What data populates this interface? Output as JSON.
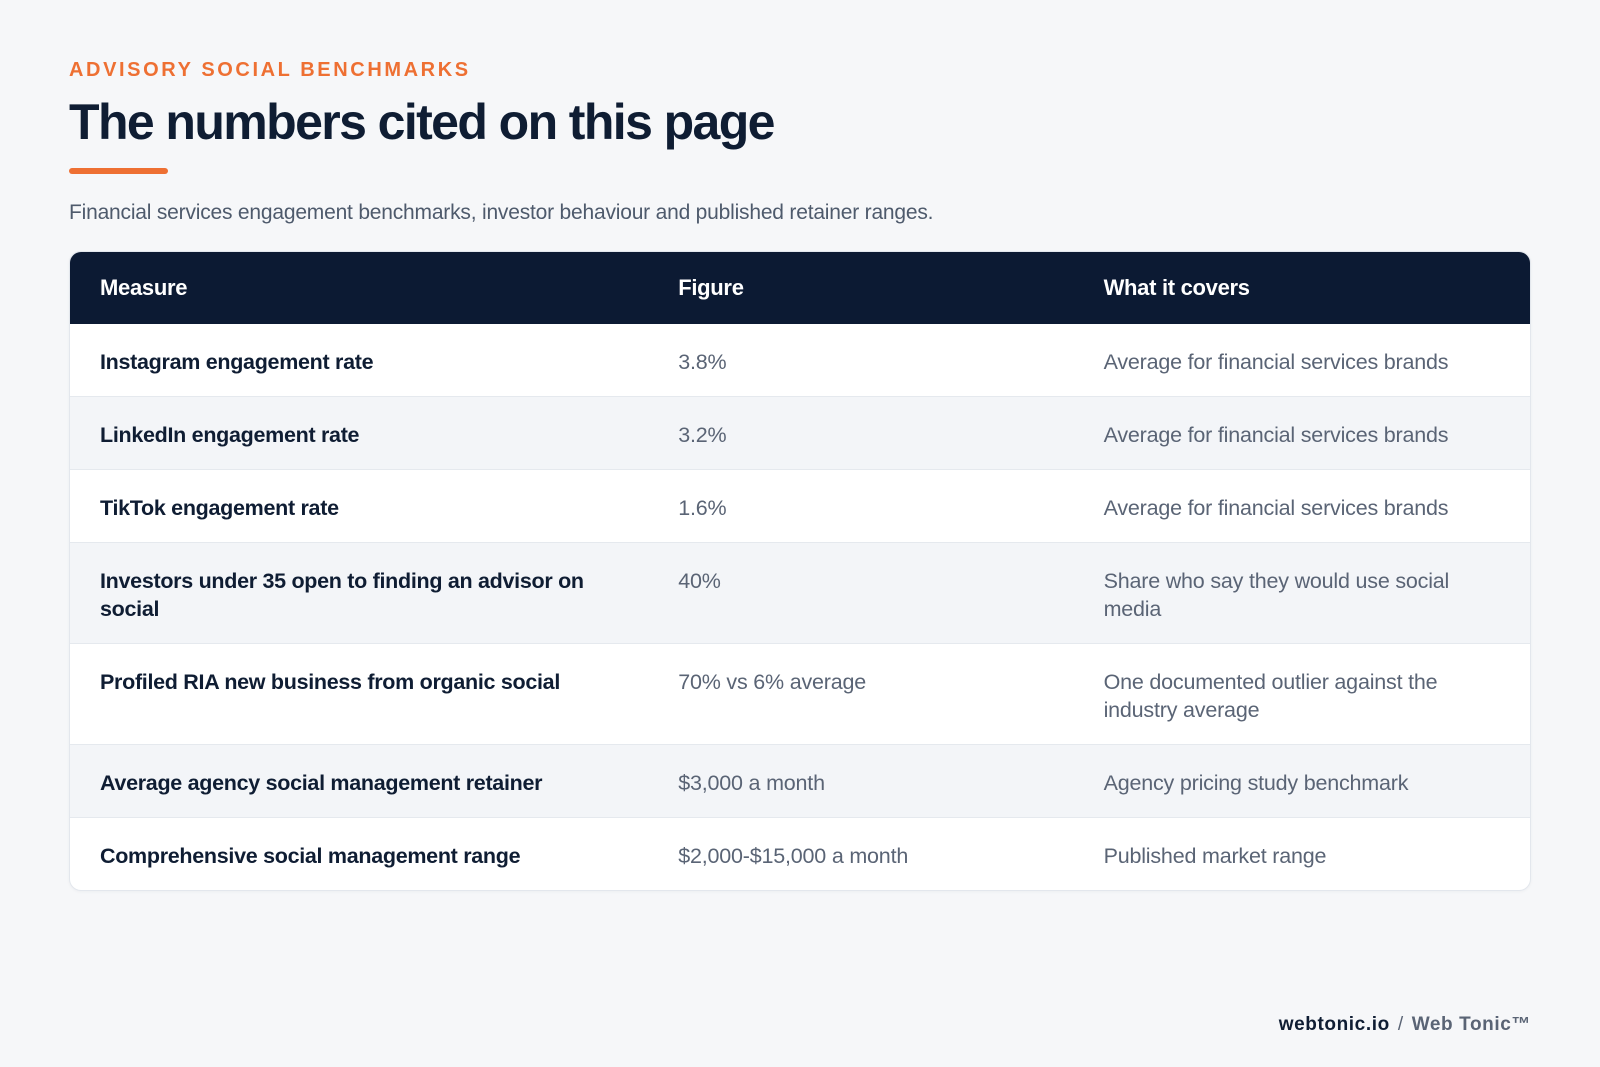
{
  "header": {
    "eyebrow": "ADVISORY SOCIAL BENCHMARKS",
    "title": "The numbers cited on this page",
    "subtitle": "Financial services engagement benchmarks, investor behaviour and published retainer ranges."
  },
  "table": {
    "columns": [
      "Measure",
      "Figure",
      "What it covers"
    ],
    "rows": [
      {
        "measure": "Instagram engagement rate",
        "figure": "3.8%",
        "covers": "Average for financial services brands"
      },
      {
        "measure": "LinkedIn engagement rate",
        "figure": "3.2%",
        "covers": "Average for financial services brands"
      },
      {
        "measure": "TikTok engagement rate",
        "figure": "1.6%",
        "covers": "Average for financial services brands"
      },
      {
        "measure": "Investors under 35 open to finding an advisor on social",
        "figure": "40%",
        "covers": "Share who say they would use social media"
      },
      {
        "measure": "Profiled RIA new business from organic social",
        "figure": "70% vs 6% average",
        "covers": "One documented outlier against the industry average"
      },
      {
        "measure": "Average agency social management retainer",
        "figure": "$3,000 a month",
        "covers": "Agency pricing study benchmark"
      },
      {
        "measure": "Comprehensive social management range",
        "figure": "$2,000-$15,000 a month",
        "covers": "Published market range"
      }
    ]
  },
  "footer": {
    "site": "webtonic.io",
    "separator": "/",
    "brand": "Web Tonic™"
  },
  "colors": {
    "accent": "#ee7033",
    "navy": "#0c1a33",
    "background": "#f6f7f9"
  }
}
